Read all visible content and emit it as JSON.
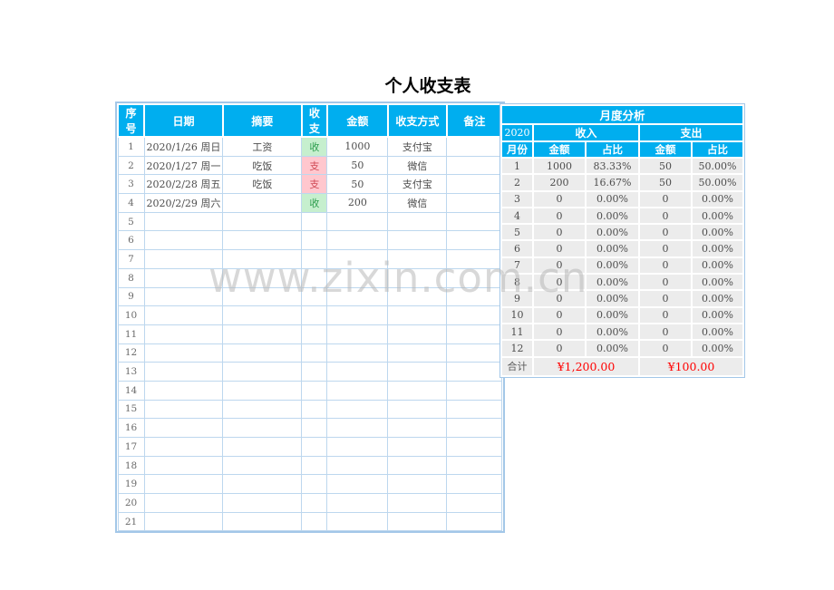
{
  "page": {
    "title": "个人收支表",
    "watermark": "www.zixin.com.cn"
  },
  "ledger": {
    "headers": [
      "序号",
      "日期",
      "摘要",
      "收支",
      "金额",
      "收支方式",
      "备注"
    ],
    "rows": [
      {
        "no": "1",
        "date": "2020/1/26 周日",
        "summary": "工资",
        "type": "收",
        "kind": "income",
        "amount": "1000",
        "method": "支付宝",
        "note": ""
      },
      {
        "no": "2",
        "date": "2020/1/27 周一",
        "summary": "吃饭",
        "type": "支",
        "kind": "expense",
        "amount": "50",
        "method": "微信",
        "note": ""
      },
      {
        "no": "3",
        "date": "2020/2/28 周五",
        "summary": "吃饭",
        "type": "支",
        "kind": "expense",
        "amount": "50",
        "method": "支付宝",
        "note": ""
      },
      {
        "no": "4",
        "date": "2020/2/29 周六",
        "summary": "",
        "type": "收",
        "kind": "income",
        "amount": "200",
        "method": "微信",
        "note": ""
      },
      {
        "no": "5",
        "date": "",
        "summary": "",
        "type": "",
        "kind": "",
        "amount": "",
        "method": "",
        "note": ""
      },
      {
        "no": "6",
        "date": "",
        "summary": "",
        "type": "",
        "kind": "",
        "amount": "",
        "method": "",
        "note": ""
      },
      {
        "no": "7",
        "date": "",
        "summary": "",
        "type": "",
        "kind": "",
        "amount": "",
        "method": "",
        "note": ""
      },
      {
        "no": "8",
        "date": "",
        "summary": "",
        "type": "",
        "kind": "",
        "amount": "",
        "method": "",
        "note": ""
      },
      {
        "no": "9",
        "date": "",
        "summary": "",
        "type": "",
        "kind": "",
        "amount": "",
        "method": "",
        "note": ""
      },
      {
        "no": "10",
        "date": "",
        "summary": "",
        "type": "",
        "kind": "",
        "amount": "",
        "method": "",
        "note": ""
      },
      {
        "no": "11",
        "date": "",
        "summary": "",
        "type": "",
        "kind": "",
        "amount": "",
        "method": "",
        "note": ""
      },
      {
        "no": "12",
        "date": "",
        "summary": "",
        "type": "",
        "kind": "",
        "amount": "",
        "method": "",
        "note": ""
      },
      {
        "no": "13",
        "date": "",
        "summary": "",
        "type": "",
        "kind": "",
        "amount": "",
        "method": "",
        "note": ""
      },
      {
        "no": "14",
        "date": "",
        "summary": "",
        "type": "",
        "kind": "",
        "amount": "",
        "method": "",
        "note": ""
      },
      {
        "no": "15",
        "date": "",
        "summary": "",
        "type": "",
        "kind": "",
        "amount": "",
        "method": "",
        "note": ""
      },
      {
        "no": "16",
        "date": "",
        "summary": "",
        "type": "",
        "kind": "",
        "amount": "",
        "method": "",
        "note": ""
      },
      {
        "no": "17",
        "date": "",
        "summary": "",
        "type": "",
        "kind": "",
        "amount": "",
        "method": "",
        "note": ""
      },
      {
        "no": "18",
        "date": "",
        "summary": "",
        "type": "",
        "kind": "",
        "amount": "",
        "method": "",
        "note": ""
      },
      {
        "no": "19",
        "date": "",
        "summary": "",
        "type": "",
        "kind": "",
        "amount": "",
        "method": "",
        "note": ""
      },
      {
        "no": "20",
        "date": "",
        "summary": "",
        "type": "",
        "kind": "",
        "amount": "",
        "method": "",
        "note": ""
      },
      {
        "no": "21",
        "date": "",
        "summary": "",
        "type": "",
        "kind": "",
        "amount": "",
        "method": "",
        "note": ""
      }
    ]
  },
  "analysis": {
    "title": "月度分析",
    "year": "2020",
    "income_label": "收入",
    "expense_label": "支出",
    "month_label": "月份",
    "amount_label": "金额",
    "ratio_label": "占比",
    "rows": [
      {
        "month": "1",
        "income": "1000",
        "income_pct": "83.33%",
        "expense": "50",
        "expense_pct": "50.00%"
      },
      {
        "month": "2",
        "income": "200",
        "income_pct": "16.67%",
        "expense": "50",
        "expense_pct": "50.00%"
      },
      {
        "month": "3",
        "income": "0",
        "income_pct": "0.00%",
        "expense": "0",
        "expense_pct": "0.00%"
      },
      {
        "month": "4",
        "income": "0",
        "income_pct": "0.00%",
        "expense": "0",
        "expense_pct": "0.00%"
      },
      {
        "month": "5",
        "income": "0",
        "income_pct": "0.00%",
        "expense": "0",
        "expense_pct": "0.00%"
      },
      {
        "month": "6",
        "income": "0",
        "income_pct": "0.00%",
        "expense": "0",
        "expense_pct": "0.00%"
      },
      {
        "month": "7",
        "income": "0",
        "income_pct": "0.00%",
        "expense": "0",
        "expense_pct": "0.00%"
      },
      {
        "month": "8",
        "income": "0",
        "income_pct": "0.00%",
        "expense": "0",
        "expense_pct": "0.00%"
      },
      {
        "month": "9",
        "income": "0",
        "income_pct": "0.00%",
        "expense": "0",
        "expense_pct": "0.00%"
      },
      {
        "month": "10",
        "income": "0",
        "income_pct": "0.00%",
        "expense": "0",
        "expense_pct": "0.00%"
      },
      {
        "month": "11",
        "income": "0",
        "income_pct": "0.00%",
        "expense": "0",
        "expense_pct": "0.00%"
      },
      {
        "month": "12",
        "income": "0",
        "income_pct": "0.00%",
        "expense": "0",
        "expense_pct": "0.00%"
      }
    ],
    "total_label": "合计",
    "income_total": "¥1,200.00",
    "expense_total": "¥100.00"
  },
  "colors": {
    "header_blue": "#00AEEF",
    "grid_blue": "#BDD7EE",
    "outer_border_blue": "#A3C7E8",
    "cell_gray": "#ECECEC",
    "income_bg": "#C6EFCE",
    "income_text": "#2F9E4F",
    "expense_bg": "#FFC7CE",
    "expense_text": "#D04A55",
    "total_red": "#FF0000"
  }
}
